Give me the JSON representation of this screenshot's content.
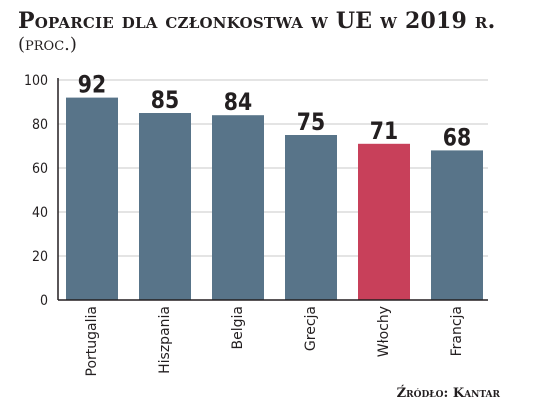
{
  "header": {
    "title": "Poparcie dla członkostwa w UE w 2019 r.",
    "subtitle": "(proc.)"
  },
  "source": "Źródło: Kantar",
  "colors": {
    "bar": "#587489",
    "highlight": "#c8405a",
    "grid": "#c9c9c9",
    "axis": "#231f20"
  },
  "chart_data": {
    "type": "bar",
    "categories": [
      "Portugalia",
      "Hiszpania",
      "Belgia",
      "Grecja",
      "Włochy",
      "Francja"
    ],
    "values": [
      92,
      85,
      84,
      75,
      71,
      68
    ],
    "data_labels": [
      "92",
      "85",
      "84",
      "75",
      "71",
      "68"
    ],
    "highlight_index": 4,
    "ylim": [
      0,
      100
    ],
    "yticks": [
      0,
      20,
      40,
      60,
      80,
      100
    ],
    "ytick_labels": [
      "0",
      "20",
      "40",
      "60",
      "80",
      "100"
    ],
    "grid": true,
    "xlabel": "",
    "ylabel": ""
  }
}
